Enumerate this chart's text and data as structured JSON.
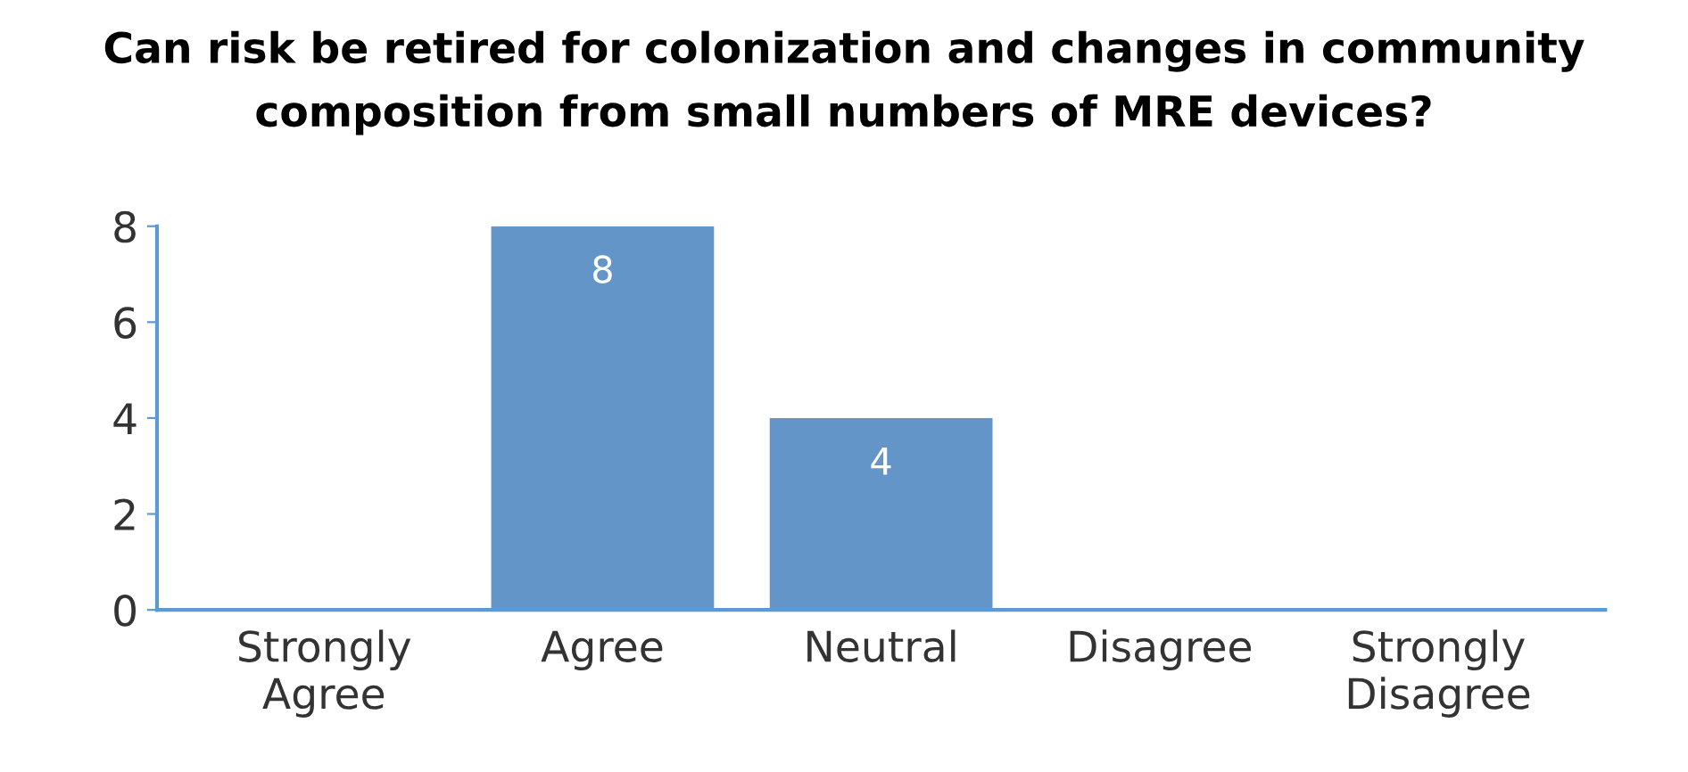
{
  "chart_data": {
    "type": "bar",
    "title": "Can risk be retired for colonization and changes in community\ncomposition from small numbers of MRE devices?",
    "categories": [
      "Strongly\nAgree",
      "Agree",
      "Neutral",
      "Disagree",
      "Strongly\nDisagree"
    ],
    "values": [
      0,
      8,
      4,
      0,
      0
    ],
    "value_labels": [
      null,
      "8",
      "4",
      null,
      null
    ],
    "color": "#6495c8",
    "ylim": [
      0,
      8
    ],
    "yticks": [
      0,
      2,
      4,
      6,
      8
    ],
    "grid": false,
    "legend": false
  }
}
